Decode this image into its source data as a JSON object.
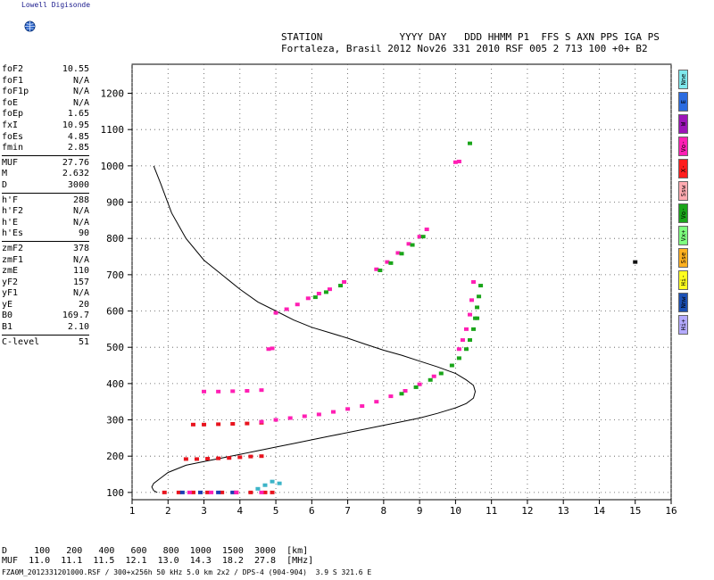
{
  "logo": {
    "text": "Lowell Digisonde",
    "icon": "globe-icon"
  },
  "header": {
    "line1": "STATION             YYYY DAY   DDD HHMM P1  FFS S AXN PPS IGA PS",
    "line2": "Fortaleza, Brasil 2012 Nov26 331 2010 RSF 005 2 713 100 +0+ B2"
  },
  "params": [
    {
      "group": [
        {
          "name": "foF2",
          "value": "10.55"
        },
        {
          "name": "foF1",
          "value": "N/A"
        },
        {
          "name": "foF1p",
          "value": "N/A"
        },
        {
          "name": "foE",
          "value": "N/A"
        },
        {
          "name": "foEp",
          "value": "1.65"
        },
        {
          "name": "fxI",
          "value": "10.95"
        },
        {
          "name": "foEs",
          "value": "4.85"
        },
        {
          "name": "fmin",
          "value": "2.85"
        }
      ]
    },
    {
      "group": [
        {
          "name": "MUF",
          "value": "27.76"
        },
        {
          "name": "M",
          "value": "2.632"
        },
        {
          "name": "D",
          "value": "3000"
        }
      ]
    },
    {
      "group": [
        {
          "name": "h'F",
          "value": "288"
        },
        {
          "name": "h'F2",
          "value": "N/A"
        },
        {
          "name": "h'E",
          "value": "N/A"
        },
        {
          "name": "h'Es",
          "value": "90"
        }
      ]
    },
    {
      "group": [
        {
          "name": "zmF2",
          "value": "378"
        },
        {
          "name": "zmF1",
          "value": "N/A"
        },
        {
          "name": "zmE",
          "value": "110"
        },
        {
          "name": "yF2",
          "value": "157"
        },
        {
          "name": "yF1",
          "value": "N/A"
        },
        {
          "name": "yE",
          "value": "20"
        },
        {
          "name": "B0",
          "value": "169.7"
        },
        {
          "name": "B1",
          "value": "2.10"
        }
      ]
    },
    {
      "group": [
        {
          "name": "C-level",
          "value": "51"
        }
      ]
    }
  ],
  "legend": [
    {
      "label": "Nne",
      "color": "#7fe8ec"
    },
    {
      "label": "E",
      "color": "#2b6ce0"
    },
    {
      "label": "W",
      "color": "#9c14b8"
    },
    {
      "label": "Vo-",
      "color": "#ff1fb4"
    },
    {
      "label": "X-",
      "color": "#ff1c1c"
    },
    {
      "label": "Ssw",
      "color": "#ffaab0"
    },
    {
      "label": "Vo-",
      "color": "#1aa51a"
    },
    {
      "label": "Vx+",
      "color": "#7fff7f"
    },
    {
      "label": "Sse",
      "color": "#ffb020"
    },
    {
      "label": "Hi-",
      "color": "#ffff20"
    },
    {
      "label": "Nnw",
      "color": "#1c50b4"
    },
    {
      "label": "Hi+",
      "color": "#b4aaff"
    }
  ],
  "d_muf": {
    "line1": "D     100   200   400   600   800  1000  1500  3000  [km]",
    "line2": "MUF  11.0  11.1  11.5  12.1  13.0  14.3  18.2  27.8  [MHz]"
  },
  "footer": "FZA0M_2012331201000.RSF / 300+x256h 50 kHz 5.0 km 2x2 / DPS-4 (904-904)  3.9 S 321.6 E",
  "chart_data": {
    "type": "scatter",
    "xlim": [
      1,
      16
    ],
    "ylim": [
      80,
      1280
    ],
    "xticks": [
      1,
      2,
      3,
      4,
      5,
      6,
      7,
      8,
      9,
      10,
      11,
      12,
      13,
      14,
      15,
      16
    ],
    "yticks": [
      100,
      200,
      300,
      400,
      500,
      600,
      700,
      800,
      900,
      1000,
      1100,
      1200
    ],
    "grid": true,
    "profile_curve": {
      "x": [
        1.6,
        1.8,
        2.1,
        2.5,
        3.0,
        3.5,
        4.0,
        4.5,
        5.0,
        5.5,
        6.0,
        6.5,
        7.0,
        7.5,
        8.0,
        8.5,
        9.0,
        9.5,
        10.0,
        10.3,
        10.5,
        10.55,
        10.5,
        10.3,
        10.0,
        9.5,
        9.0,
        8.5,
        8.0,
        7.5,
        7.0,
        6.5,
        6.0,
        5.5,
        5.0,
        4.5,
        4.0,
        3.5,
        3.0,
        2.5,
        2.0,
        1.8,
        1.6,
        1.55,
        1.6,
        1.7
      ],
      "y": [
        1000,
        950,
        870,
        800,
        740,
        700,
        660,
        625,
        600,
        575,
        555,
        540,
        525,
        508,
        492,
        478,
        462,
        446,
        428,
        410,
        395,
        378,
        360,
        345,
        333,
        318,
        305,
        295,
        285,
        275,
        265,
        255,
        245,
        235,
        225,
        215,
        205,
        195,
        185,
        175,
        155,
        140,
        125,
        115,
        105,
        100
      ]
    },
    "traces": [
      {
        "color": "#e8141e",
        "x": [
          1.9,
          2.3,
          2.7,
          3.1,
          3.5,
          3.9,
          4.3,
          4.7,
          4.9
        ],
        "y": [
          100,
          100,
          100,
          100,
          100,
          100,
          100,
          100,
          100
        ]
      },
      {
        "color": "#1c3cb4",
        "x": [
          2.4,
          2.9,
          3.4,
          3.8
        ],
        "y": [
          100,
          100,
          100,
          100
        ]
      },
      {
        "color": "#ff1fb4",
        "x": [
          2.6,
          3.2,
          3.9,
          4.6
        ],
        "y": [
          100,
          100,
          100,
          100
        ]
      },
      {
        "color": "#e8141e",
        "x": [
          2.5,
          2.8,
          3.1,
          3.4,
          3.7,
          4.0,
          4.3,
          4.6
        ],
        "y": [
          192,
          192,
          193,
          194,
          195,
          197,
          199,
          200
        ]
      },
      {
        "color": "#e8141e",
        "x": [
          2.7,
          3.0,
          3.4,
          3.8,
          4.2,
          4.6
        ],
        "y": [
          287,
          287,
          288,
          289,
          290,
          292
        ]
      },
      {
        "color": "#ff1fb4",
        "x": [
          4.6,
          5.0,
          5.4,
          5.8,
          6.2,
          6.6,
          7.0,
          7.4,
          7.8,
          8.2,
          8.6,
          9.0,
          9.4
        ],
        "y": [
          295,
          300,
          305,
          310,
          315,
          322,
          330,
          338,
          350,
          365,
          380,
          398,
          420
        ]
      },
      {
        "color": "#1aa51a",
        "x": [
          8.5,
          8.9,
          9.3,
          9.6,
          9.9,
          10.1,
          10.3,
          10.4,
          10.5,
          10.6
        ],
        "y": [
          372,
          390,
          410,
          428,
          450,
          470,
          495,
          520,
          550,
          580
        ]
      },
      {
        "color": "#ff1fb4",
        "x": [
          10.1,
          10.2,
          10.3,
          10.4,
          10.45,
          10.5
        ],
        "y": [
          495,
          520,
          550,
          590,
          630,
          680
        ]
      },
      {
        "color": "#1aa51a",
        "x": [
          10.55,
          10.6,
          10.65,
          10.7
        ],
        "y": [
          580,
          610,
          640,
          670
        ]
      },
      {
        "color": "#ff1fb4",
        "x": [
          3.0,
          3.4,
          3.8,
          4.2,
          4.6
        ],
        "y": [
          378,
          378,
          379,
          380,
          382
        ]
      },
      {
        "color": "#ff1fb4",
        "x": [
          5.0,
          5.3,
          5.6
        ],
        "y": [
          595,
          605,
          618
        ]
      },
      {
        "color": "#ff1fb4",
        "x": [
          5.9,
          6.2,
          6.5,
          6.9
        ],
        "y": [
          635,
          648,
          660,
          680
        ]
      },
      {
        "color": "#1aa51a",
        "x": [
          6.1,
          6.4,
          6.8
        ],
        "y": [
          638,
          652,
          670
        ]
      },
      {
        "color": "#ff1fb4",
        "x": [
          7.8,
          8.1,
          8.4,
          8.7,
          9.0,
          9.2
        ],
        "y": [
          715,
          735,
          760,
          785,
          805,
          825
        ]
      },
      {
        "color": "#1aa51a",
        "x": [
          7.9,
          8.2,
          8.5,
          8.8,
          9.1
        ],
        "y": [
          712,
          732,
          758,
          782,
          805
        ]
      },
      {
        "color": "#ff1fb4",
        "x": [
          4.8,
          4.9
        ],
        "y": [
          495,
          497
        ]
      },
      {
        "color": "#ff1fb4",
        "x": [
          10.0,
          10.1
        ],
        "y": [
          1010,
          1012
        ]
      },
      {
        "color": "#1aa51a",
        "x": [
          10.4
        ],
        "y": [
          1062
        ]
      },
      {
        "color": "#111111",
        "x": [
          15.0
        ],
        "y": [
          735
        ]
      },
      {
        "color": "#3cb4c8",
        "x": [
          4.5,
          4.7,
          4.9,
          5.1
        ],
        "y": [
          110,
          120,
          130,
          125
        ]
      }
    ]
  }
}
